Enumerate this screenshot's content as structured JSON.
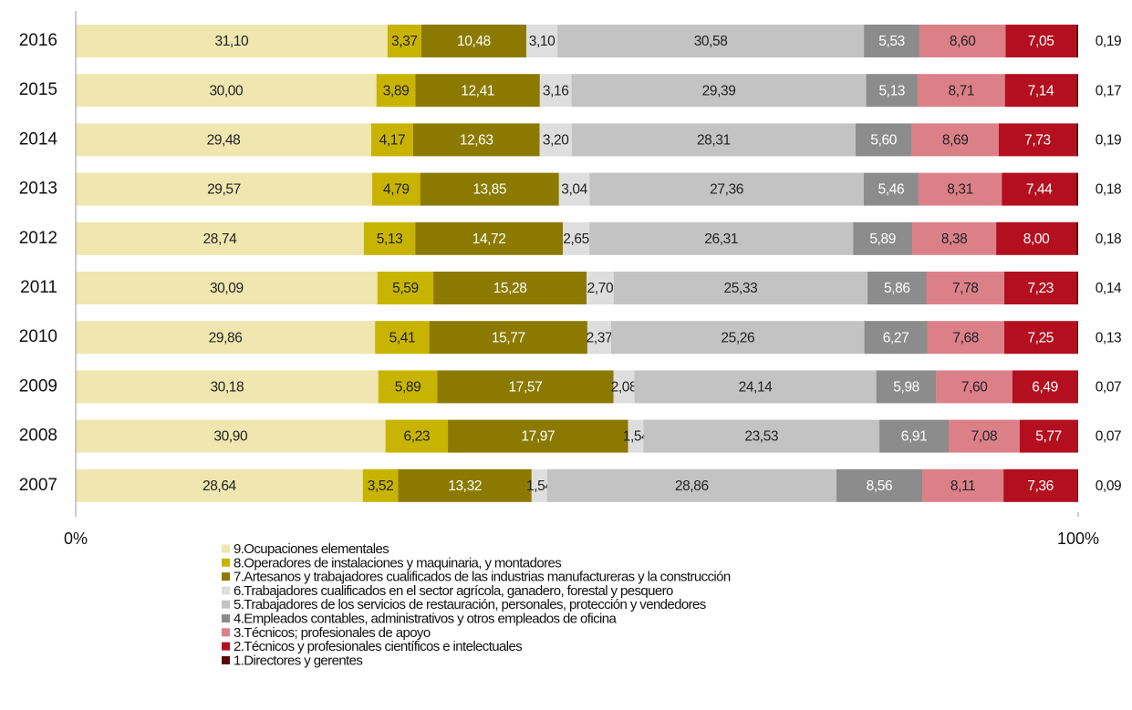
{
  "chart_data": {
    "type": "stacked_bar_horizontal",
    "categories": [
      "2016",
      "2015",
      "2014",
      "2013",
      "2012",
      "2011",
      "2010",
      "2009",
      "2008",
      "2007"
    ],
    "xlim": [
      0,
      100
    ],
    "xticks": [
      {
        "value": 0,
        "label": "0%"
      },
      {
        "value": 100,
        "label": "100%"
      }
    ],
    "series": [
      {
        "name": "9.Ocupaciones elementales",
        "color": "#f0e6b0",
        "values": [
          31.1,
          30.0,
          29.48,
          29.57,
          28.74,
          30.09,
          29.86,
          30.18,
          30.9,
          28.64
        ],
        "value_labels": [
          "31,10",
          "30,00",
          "29,48",
          "29,57",
          "28,74",
          "30,09",
          "29,86",
          "30,18",
          "30,90",
          "28,64"
        ]
      },
      {
        "name": "8.Operadores de instalaciones y maquinaria, y montadores",
        "color": "#c8b400",
        "values": [
          3.37,
          3.89,
          4.17,
          4.79,
          5.13,
          5.59,
          5.41,
          5.89,
          6.23,
          3.52
        ],
        "value_labels": [
          "3,37",
          "3,89",
          "4,17",
          "4,79",
          "5,13",
          "5,59",
          "5,41",
          "5,89",
          "6,23",
          "3,52"
        ]
      },
      {
        "name": "7.Artesanos y trabajadores cualificados de las industrias manufactureras y la construcción",
        "color": "#8c7a00",
        "values": [
          10.48,
          12.41,
          12.63,
          13.85,
          14.72,
          15.28,
          15.77,
          17.57,
          17.97,
          13.32
        ],
        "value_labels": [
          "10,48",
          "12,41",
          "12,63",
          "13,85",
          "14,72",
          "15,28",
          "15,77",
          "17,57",
          "17,97",
          "13,32"
        ]
      },
      {
        "name": "6.Trabajadores cualificados en el sector agrícola, ganadero, forestal y pesquero",
        "color": "#dedede",
        "values": [
          3.1,
          3.16,
          3.2,
          3.04,
          2.65,
          2.7,
          2.37,
          2.08,
          1.54,
          1.54
        ],
        "value_labels": [
          "3,10",
          "3,16",
          "3,20",
          "3,04",
          "2,65",
          "2,70",
          "2,37",
          "2,08",
          "1,54",
          "1,54"
        ]
      },
      {
        "name": "5.Trabajadores de los servicios de restauración, personales, protección y vendedores",
        "color": "#c3c3c3",
        "values": [
          30.58,
          29.39,
          28.31,
          27.36,
          26.31,
          25.33,
          25.26,
          24.14,
          23.53,
          28.86
        ],
        "value_labels": [
          "30,58",
          "29,39",
          "28,31",
          "27,36",
          "26,31",
          "25,33",
          "25,26",
          "24,14",
          "23,53",
          "28,86"
        ]
      },
      {
        "name": "4.Empleados contables, administrativos y otros empleados de oficina",
        "color": "#8c8c8c",
        "values": [
          5.53,
          5.13,
          5.6,
          5.46,
          5.89,
          5.86,
          6.27,
          5.98,
          6.91,
          8.56
        ],
        "value_labels": [
          "5,53",
          "5,13",
          "5,60",
          "5,46",
          "5,89",
          "5,86",
          "6,27",
          "5,98",
          "6,91",
          "8,56"
        ]
      },
      {
        "name": "3.Técnicos; profesionales de apoyo",
        "color": "#dc8088",
        "values": [
          8.6,
          8.71,
          8.69,
          8.31,
          8.38,
          7.78,
          7.68,
          7.6,
          7.08,
          8.11
        ],
        "value_labels": [
          "8,60",
          "8,71",
          "8,69",
          "8,31",
          "8,38",
          "7,78",
          "7,68",
          "7,60",
          "7,08",
          "8,11"
        ]
      },
      {
        "name": "2.Técnicos y profesionales científicos e intelectuales",
        "color": "#b40f1e",
        "values": [
          7.05,
          7.14,
          7.73,
          7.44,
          8.0,
          7.23,
          7.25,
          6.49,
          5.77,
          7.36
        ],
        "value_labels": [
          "7,05",
          "7,14",
          "7,73",
          "7,44",
          "8,00",
          "7,23",
          "7,25",
          "6,49",
          "5,77",
          "7,36"
        ]
      },
      {
        "name": "1.Directores y gerentes",
        "color": "#5a0a0a",
        "values": [
          0.19,
          0.17,
          0.19,
          0.18,
          0.18,
          0.14,
          0.13,
          0.07,
          0.07,
          0.09
        ],
        "value_labels": [
          "0,19",
          "0,17",
          "0,19",
          "0,18",
          "0,18",
          "0,14",
          "0,13",
          "0,07",
          "0,07",
          "0,09"
        ]
      }
    ]
  }
}
